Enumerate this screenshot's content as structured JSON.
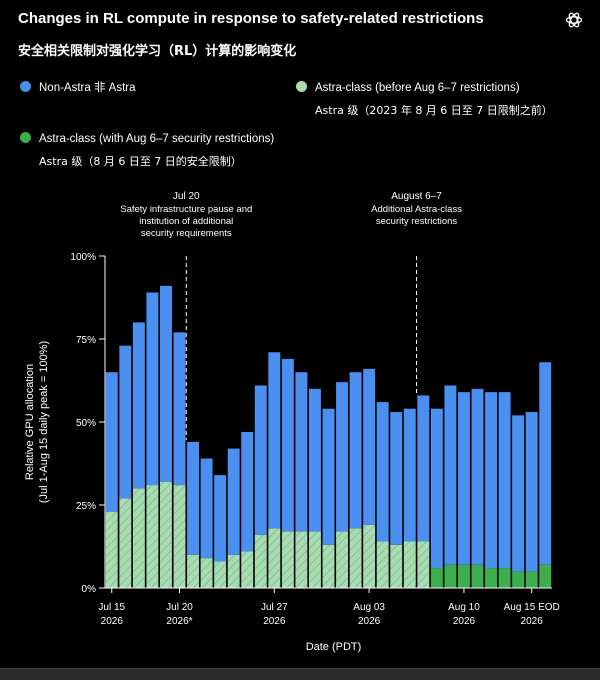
{
  "title": "Changes in RL compute in response to safety-related restrictions",
  "subtitle_zh": "安全相关限制对强化学习（RL）计算的影响变化",
  "logo": "openai-logo-icon",
  "colors": {
    "non_astra": "#4b8ff0",
    "astra_before": "#a9dcb3",
    "astra_after": "#3cae4c",
    "hatch": "#7fc48d",
    "background": "#000000",
    "annotation_line": "#ffffff"
  },
  "legend": [
    {
      "label": "Non-Astra  非 Astra",
      "sub": "",
      "color_key": "non_astra"
    },
    {
      "label": "Astra-class (before Aug 6–7 restrictions)",
      "sub": "Astra 级（2023 年 8 月 6 日至 7 日限制之前）",
      "color_key": "astra_before"
    },
    {
      "label": "Astra-class (with Aug 6–7 security restrictions)",
      "sub": "Astra 级（8 月 6 日至 7 日的安全限制）",
      "color_key": "astra_after"
    }
  ],
  "annotations": [
    {
      "after_index": 5,
      "title": "Jul 20",
      "lines": [
        "Safety infrastructure pause and",
        "institution of additional",
        "security requirements"
      ]
    },
    {
      "after_index": 22,
      "title": "August 6–7",
      "lines": [
        "Additional Astra-class",
        "security restrictions"
      ]
    }
  ],
  "chart_data": {
    "type": "bar",
    "stacked": true,
    "title": "Changes in RL compute in response to safety-related restrictions",
    "xlabel": "Date (PDT)",
    "ylabel": "Relative GPU allocation\n(Jul 1-Aug 15 daily peak = 100%)",
    "ylim": [
      0,
      100
    ],
    "yticks": [
      "0%",
      "25%",
      "50%",
      "75%",
      "100%"
    ],
    "xticks": [
      {
        "index": 0,
        "label": "Jul 15\n2026"
      },
      {
        "index": 5,
        "label": "Jul 20\n2026*"
      },
      {
        "index": 12,
        "label": "Jul 27\n2026"
      },
      {
        "index": 19,
        "label": "Aug 03\n2026"
      },
      {
        "index": 26,
        "label": "Aug 10\n2026"
      },
      {
        "index": 31,
        "label": "Aug 15 EOD\n2026"
      }
    ],
    "series": [
      {
        "name": "Astra-class (before Aug 6–7 restrictions)",
        "values": [
          23,
          27,
          30,
          31,
          32,
          31,
          10,
          9,
          8,
          10,
          11,
          16,
          18,
          17,
          17,
          17,
          13,
          17,
          18,
          19,
          14,
          13,
          14,
          14,
          0,
          0,
          0,
          0,
          0,
          0,
          0,
          0,
          0
        ]
      },
      {
        "name": "Astra-class (with Aug 6–7 security restrictions)",
        "values": [
          0,
          0,
          0,
          0,
          0,
          0,
          0,
          0,
          0,
          0,
          0,
          0,
          0,
          0,
          0,
          0,
          0,
          0,
          0,
          0,
          0,
          0,
          0,
          0,
          6,
          7,
          7,
          7,
          6,
          6,
          5,
          5,
          7
        ]
      },
      {
        "name": "Non-Astra  非 Astra",
        "values": [
          42,
          46,
          50,
          58,
          59,
          46,
          34,
          30,
          26,
          32,
          36,
          45,
          53,
          52,
          48,
          43,
          41,
          45,
          47,
          47,
          42,
          40,
          40,
          44,
          48,
          54,
          52,
          53,
          53,
          53,
          47,
          48,
          61
        ]
      }
    ],
    "grid": false
  }
}
